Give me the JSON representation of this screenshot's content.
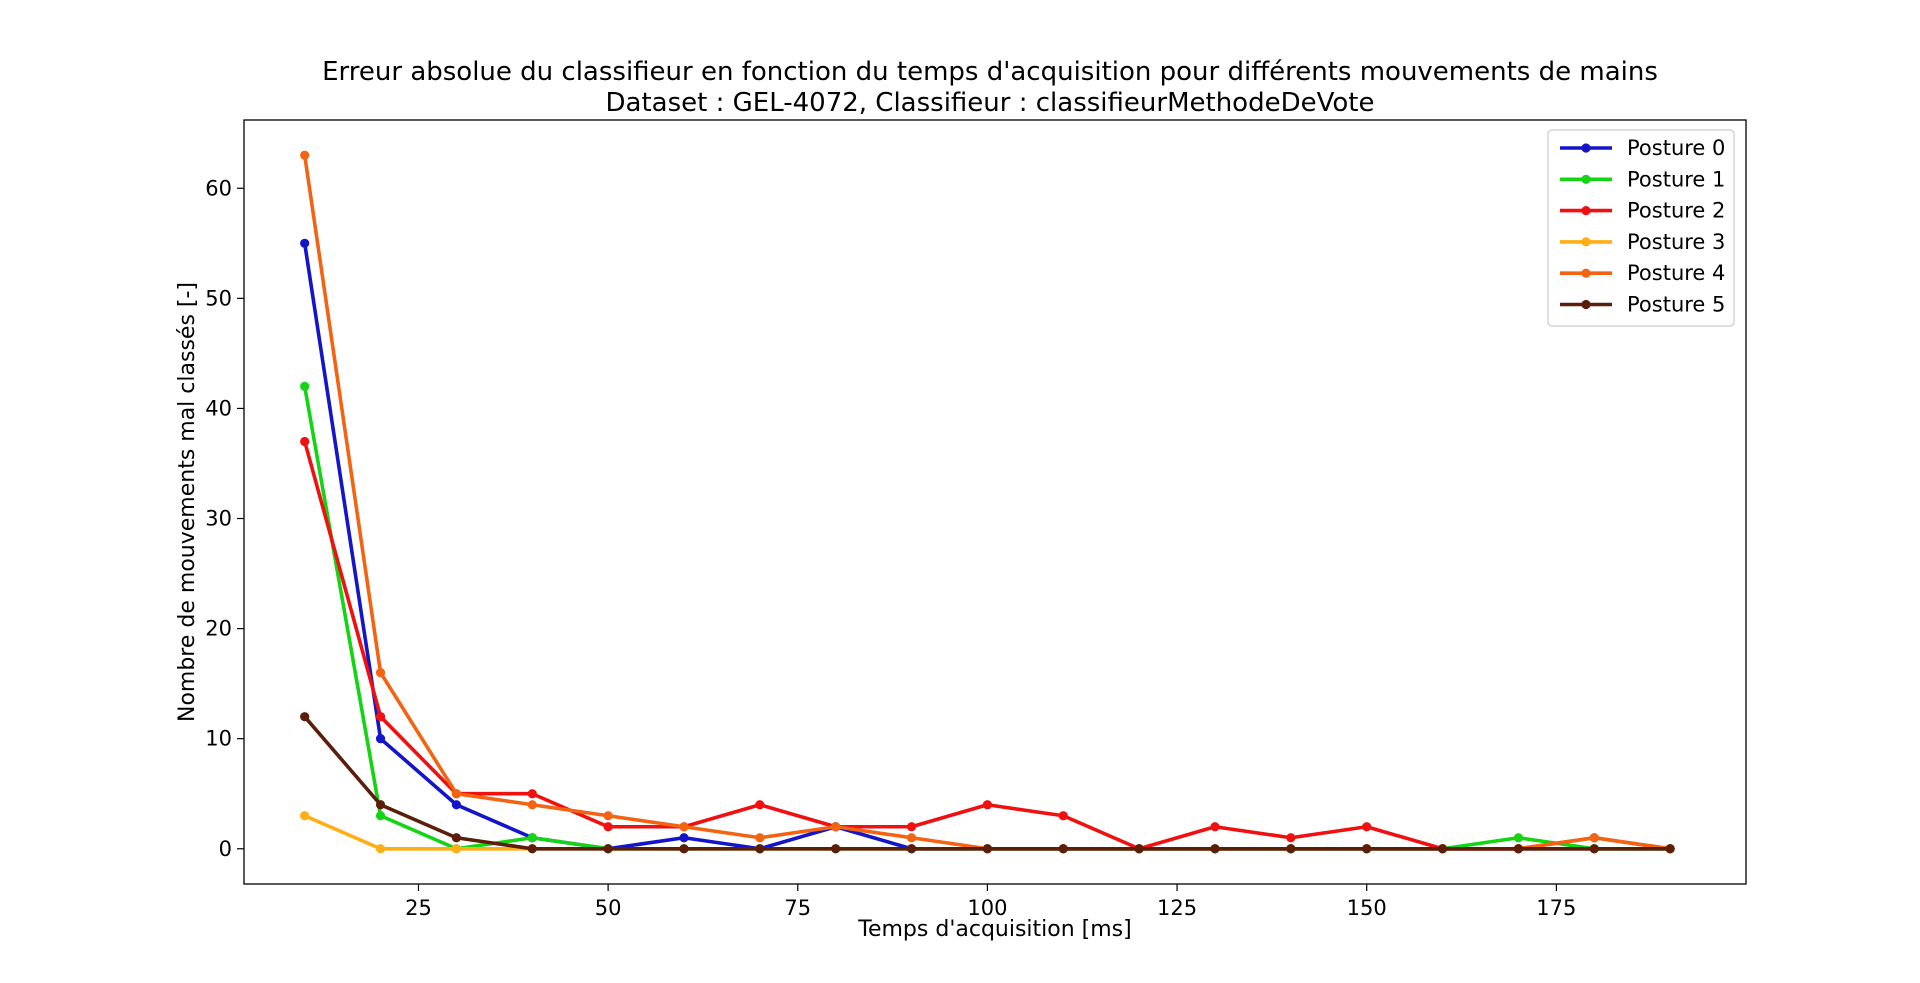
{
  "chart_data": {
    "type": "line",
    "title": "Erreur absolue du classifieur en fonction du temps d'acquisition pour différents mouvements de mains",
    "subtitle": "Dataset : GEL-4072, Classifieur : classifieurMethodeDeVote",
    "xlabel": "Temps d'acquisition [ms]",
    "ylabel": "Nombre de mouvements mal classés [-]",
    "xlim": [
      2,
      200
    ],
    "ylim": [
      -3.2,
      66.2
    ],
    "xticks": [
      25,
      50,
      75,
      100,
      125,
      150,
      175
    ],
    "yticks": [
      0,
      10,
      20,
      30,
      40,
      50,
      60
    ],
    "grid": false,
    "legend_position": "top-right",
    "x": [
      10,
      20,
      30,
      40,
      50,
      60,
      70,
      80,
      90,
      100,
      110,
      120,
      130,
      140,
      150,
      160,
      170,
      180,
      190
    ],
    "series": [
      {
        "name": "Posture 0",
        "color": "#1414c8",
        "values": [
          55,
          10,
          4,
          1,
          0,
          1,
          0,
          2,
          0,
          0,
          0,
          0,
          0,
          0,
          0,
          0,
          0,
          0,
          0
        ]
      },
      {
        "name": "Posture 1",
        "color": "#14d414",
        "values": [
          42,
          3,
          0,
          1,
          0,
          0,
          0,
          0,
          0,
          0,
          0,
          0,
          0,
          0,
          0,
          0,
          1,
          0,
          0
        ]
      },
      {
        "name": "Posture 2",
        "color": "#f01010",
        "values": [
          37,
          12,
          5,
          5,
          2,
          2,
          4,
          2,
          2,
          4,
          3,
          0,
          2,
          1,
          2,
          0,
          0,
          1,
          0
        ]
      },
      {
        "name": "Posture 3",
        "color": "#ffae14",
        "values": [
          3,
          0,
          0,
          0,
          0,
          0,
          0,
          0,
          0,
          0,
          0,
          0,
          0,
          0,
          0,
          0,
          0,
          0,
          0
        ]
      },
      {
        "name": "Posture 4",
        "color": "#f26414",
        "values": [
          63,
          16,
          5,
          4,
          3,
          2,
          1,
          2,
          1,
          0,
          0,
          0,
          0,
          0,
          0,
          0,
          0,
          1,
          0
        ]
      },
      {
        "name": "Posture 5",
        "color": "#5a1e0a",
        "values": [
          12,
          4,
          1,
          0,
          0,
          0,
          0,
          0,
          0,
          0,
          0,
          0,
          0,
          0,
          0,
          0,
          0,
          0,
          0
        ]
      }
    ]
  }
}
